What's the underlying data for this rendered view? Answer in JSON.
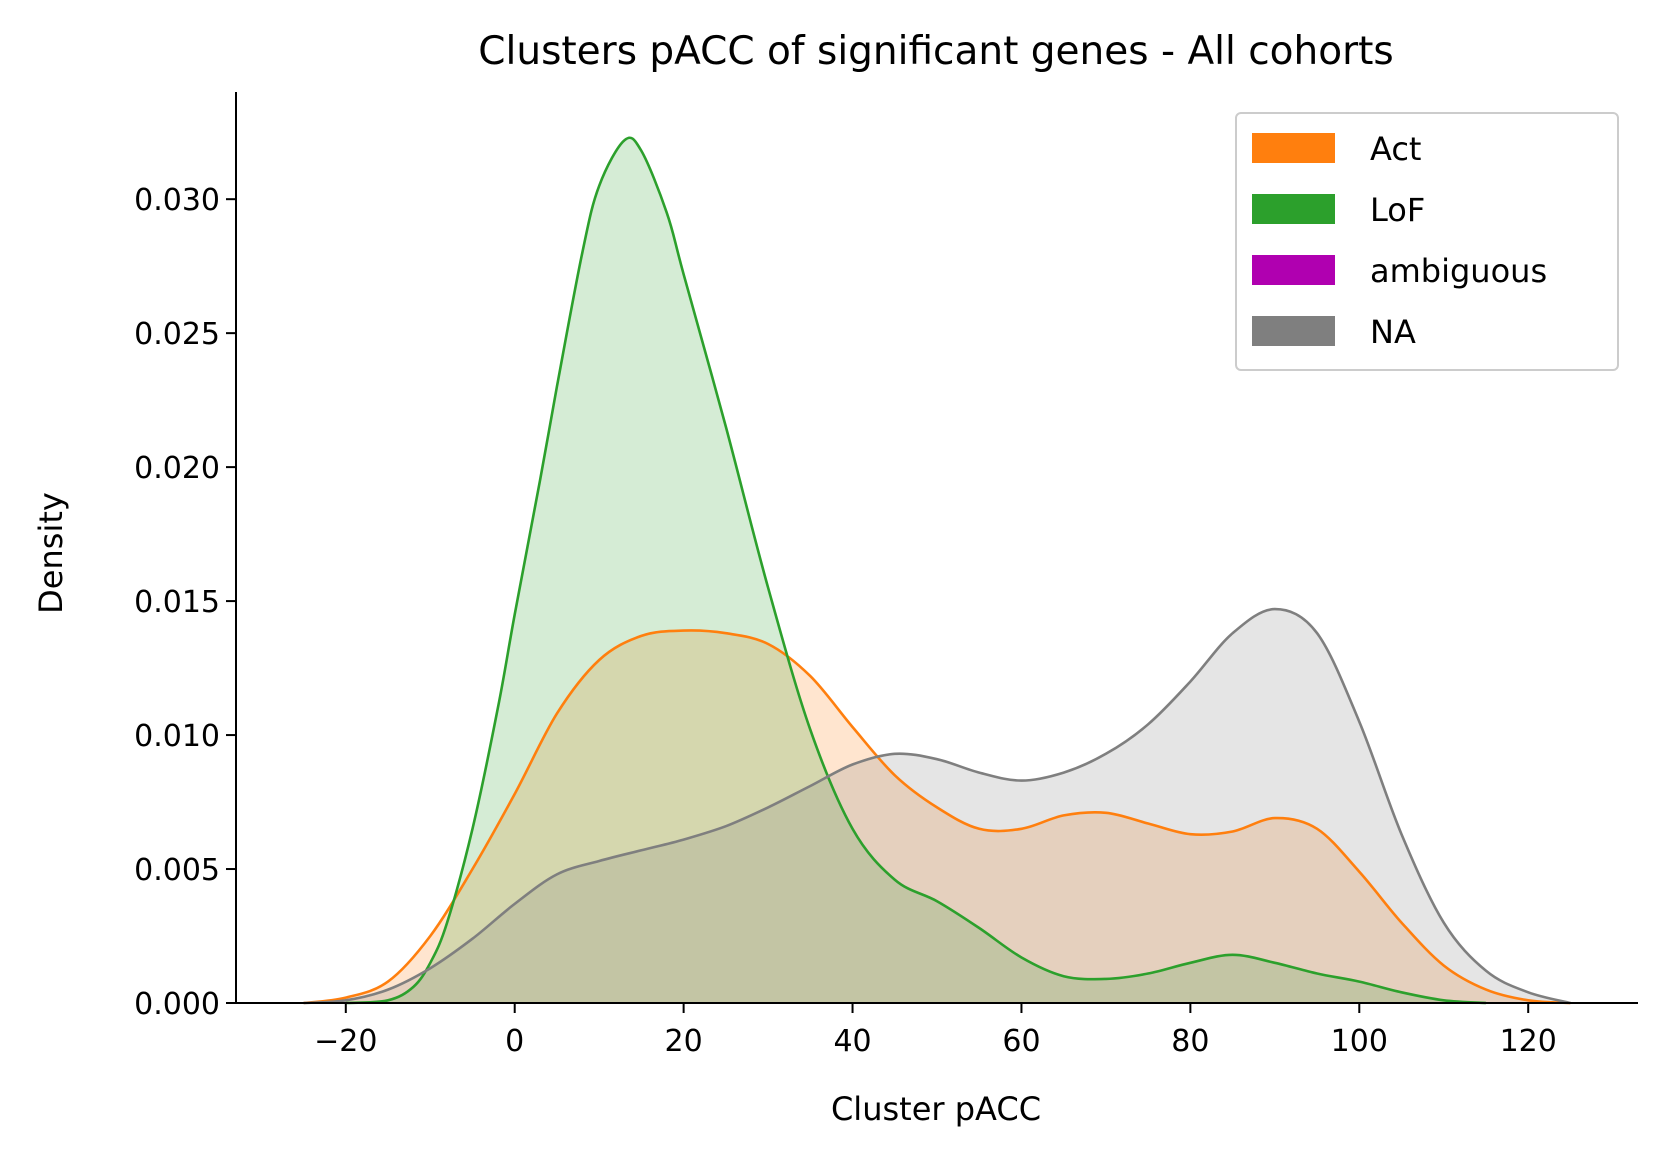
{
  "chart_data": {
    "type": "area",
    "title": "Clusters pACC of significant genes - All cohorts",
    "xlabel": "Cluster pACC",
    "ylabel": "Density",
    "xlim": [
      -33,
      133
    ],
    "ylim": [
      0,
      0.034
    ],
    "xticks": [
      -20,
      0,
      20,
      40,
      60,
      80,
      100,
      120
    ],
    "xtick_labels": [
      "−20",
      "0",
      "20",
      "40",
      "60",
      "80",
      "100",
      "120"
    ],
    "yticks": [
      0,
      0.005,
      0.01,
      0.015,
      0.02,
      0.025,
      0.03
    ],
    "ytick_labels": [
      "0.000",
      "0.005",
      "0.010",
      "0.015",
      "0.020",
      "0.025",
      "0.030"
    ],
    "legend_position": "top-right",
    "grid": false,
    "series": [
      {
        "name": "Act",
        "color": "#ff7f0e",
        "points": [
          [
            -25,
            0.0
          ],
          [
            -20,
            0.0002
          ],
          [
            -15,
            0.0008
          ],
          [
            -10,
            0.0025
          ],
          [
            -5,
            0.005
          ],
          [
            0,
            0.0078
          ],
          [
            5,
            0.0108
          ],
          [
            10,
            0.0128
          ],
          [
            15,
            0.0137
          ],
          [
            20,
            0.0139
          ],
          [
            25,
            0.0138
          ],
          [
            30,
            0.0134
          ],
          [
            35,
            0.0122
          ],
          [
            40,
            0.0103
          ],
          [
            45,
            0.0085
          ],
          [
            50,
            0.0073
          ],
          [
            55,
            0.0065
          ],
          [
            60,
            0.0065
          ],
          [
            65,
            0.007
          ],
          [
            70,
            0.0071
          ],
          [
            75,
            0.0067
          ],
          [
            80,
            0.0063
          ],
          [
            85,
            0.0064
          ],
          [
            90,
            0.0069
          ],
          [
            95,
            0.0065
          ],
          [
            100,
            0.0049
          ],
          [
            105,
            0.003
          ],
          [
            110,
            0.0014
          ],
          [
            115,
            0.0005
          ],
          [
            120,
            0.0001
          ],
          [
            125,
            0.0
          ]
        ]
      },
      {
        "name": "LoF",
        "color": "#2ca02c",
        "points": [
          [
            -20,
            0.0
          ],
          [
            -15,
            0.0001
          ],
          [
            -12,
            0.0006
          ],
          [
            -10,
            0.0015
          ],
          [
            -8,
            0.003
          ],
          [
            -5,
            0.0065
          ],
          [
            -2,
            0.011
          ],
          [
            0,
            0.0145
          ],
          [
            3,
            0.0195
          ],
          [
            5,
            0.023
          ],
          [
            8,
            0.028
          ],
          [
            10,
            0.0305
          ],
          [
            13,
            0.0322
          ],
          [
            15,
            0.0318
          ],
          [
            18,
            0.0295
          ],
          [
            20,
            0.0272
          ],
          [
            25,
            0.0215
          ],
          [
            30,
            0.0155
          ],
          [
            35,
            0.0102
          ],
          [
            40,
            0.0065
          ],
          [
            45,
            0.0046
          ],
          [
            50,
            0.0038
          ],
          [
            55,
            0.0028
          ],
          [
            60,
            0.0017
          ],
          [
            65,
            0.001
          ],
          [
            70,
            0.0009
          ],
          [
            75,
            0.0011
          ],
          [
            80,
            0.0015
          ],
          [
            85,
            0.0018
          ],
          [
            90,
            0.0015
          ],
          [
            95,
            0.0011
          ],
          [
            100,
            0.0008
          ],
          [
            105,
            0.0004
          ],
          [
            110,
            0.0001
          ],
          [
            115,
            0.0
          ]
        ]
      },
      {
        "name": "ambiguous",
        "color": "#b000b0",
        "points": []
      },
      {
        "name": "NA",
        "color": "#7f7f7f",
        "points": [
          [
            -25,
            0.0
          ],
          [
            -20,
            0.0001
          ],
          [
            -15,
            0.0005
          ],
          [
            -10,
            0.0013
          ],
          [
            -5,
            0.0024
          ],
          [
            0,
            0.0037
          ],
          [
            5,
            0.0048
          ],
          [
            10,
            0.0053
          ],
          [
            15,
            0.0057
          ],
          [
            20,
            0.0061
          ],
          [
            25,
            0.0066
          ],
          [
            30,
            0.0073
          ],
          [
            35,
            0.0081
          ],
          [
            40,
            0.0089
          ],
          [
            45,
            0.0093
          ],
          [
            50,
            0.0091
          ],
          [
            55,
            0.0086
          ],
          [
            60,
            0.0083
          ],
          [
            65,
            0.0086
          ],
          [
            70,
            0.0093
          ],
          [
            75,
            0.0104
          ],
          [
            80,
            0.012
          ],
          [
            85,
            0.0138
          ],
          [
            90,
            0.0147
          ],
          [
            95,
            0.0138
          ],
          [
            100,
            0.0105
          ],
          [
            105,
            0.0063
          ],
          [
            110,
            0.003
          ],
          [
            115,
            0.0012
          ],
          [
            120,
            0.0004
          ],
          [
            125,
            0.0
          ]
        ]
      }
    ]
  }
}
